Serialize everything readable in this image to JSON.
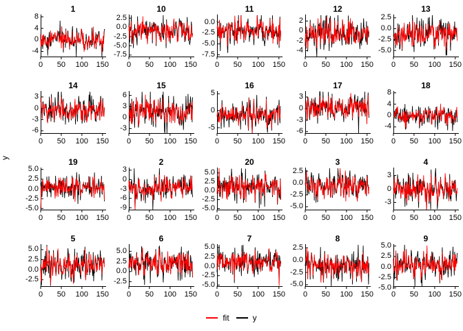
{
  "figure": {
    "y_axis_label": "y",
    "background": "#ffffff",
    "legend": {
      "entries": [
        {
          "label": "fit",
          "color": "#ff0000"
        },
        {
          "label": "y",
          "color": "#000000"
        }
      ]
    }
  },
  "chart_data": {
    "type": "line",
    "layout": "facet-grid-5x4",
    "x_ticks": [
      "0",
      "50",
      "100",
      "150"
    ],
    "x_tick_values": [
      0,
      50,
      100,
      150
    ],
    "x_range": [
      0,
      157
    ],
    "n_points": 155,
    "series": [
      {
        "name": "fit",
        "color": "#ff0000"
      },
      {
        "name": "y",
        "color": "#000000"
      }
    ],
    "facet_titles": [
      "1",
      "10",
      "11",
      "12",
      "13",
      "14",
      "15",
      "16",
      "17",
      "18",
      "19",
      "2",
      "20",
      "3",
      "4",
      "5",
      "6",
      "7",
      "8",
      "9"
    ],
    "panels": [
      {
        "title": "1",
        "y_ticks": [
          "8",
          "4",
          "0",
          "-4"
        ],
        "y_tick_values": [
          8,
          4,
          0,
          -4
        ],
        "ylim": [
          -5.8,
          8.6
        ],
        "mean": 0.0,
        "sd": 2.0
      },
      {
        "title": "10",
        "y_ticks": [
          "2.5",
          "0.0",
          "-2.5",
          "-5.0",
          "-7.5"
        ],
        "y_tick_values": [
          2.5,
          0,
          -2.5,
          -5,
          -7.5
        ],
        "ylim": [
          -7.9,
          3.3
        ],
        "mean": -1.0,
        "sd": 1.9
      },
      {
        "title": "11",
        "y_ticks": [
          "0.0",
          "-2.5",
          "-5.0",
          "-7.5"
        ],
        "y_tick_values": [
          0,
          -2.5,
          -5,
          -7.5
        ],
        "ylim": [
          -7.9,
          1.6
        ],
        "mean": -2.1,
        "sd": 1.6
      },
      {
        "title": "12",
        "y_ticks": [
          "2",
          "0",
          "-2",
          "-4"
        ],
        "y_tick_values": [
          2,
          0,
          -2,
          -4
        ],
        "ylim": [
          -5.2,
          3.2
        ],
        "mean": -0.5,
        "sd": 1.5
      },
      {
        "title": "13",
        "y_ticks": [
          "2.5",
          "0.0",
          "-2.5",
          "-5.0"
        ],
        "y_tick_values": [
          2.5,
          0,
          -2.5,
          -5
        ],
        "ylim": [
          -6.4,
          3.1
        ],
        "mean": -1.4,
        "sd": 1.7
      },
      {
        "title": "14",
        "y_ticks": [
          "3",
          "0",
          "-3",
          "-6"
        ],
        "y_tick_values": [
          3,
          0,
          -3,
          -6
        ],
        "ylim": [
          -6.6,
          4.4
        ],
        "mean": -0.5,
        "sd": 1.9
      },
      {
        "title": "15",
        "y_ticks": [
          "6",
          "3",
          "0",
          "-3"
        ],
        "y_tick_values": [
          6,
          3,
          0,
          -3
        ],
        "ylim": [
          -4.2,
          7.0
        ],
        "mean": 1.4,
        "sd": 2.0
      },
      {
        "title": "16",
        "y_ticks": [
          "5",
          "0",
          "-5"
        ],
        "y_tick_values": [
          5,
          0,
          -5
        ],
        "ylim": [
          -6.6,
          5.6
        ],
        "mean": -1.3,
        "sd": 1.9
      },
      {
        "title": "17",
        "y_ticks": [
          "3",
          "0",
          "-3",
          "-6"
        ],
        "y_tick_values": [
          3,
          0,
          -3,
          -6
        ],
        "ylim": [
          -6.4,
          4.4
        ],
        "mean": 0.3,
        "sd": 1.8
      },
      {
        "title": "18",
        "y_ticks": [
          "8",
          "4",
          "0",
          "-4"
        ],
        "y_tick_values": [
          8,
          4,
          0,
          -4
        ],
        "ylim": [
          -6.2,
          8.4
        ],
        "mean": 0.1,
        "sd": 1.9
      },
      {
        "title": "19",
        "y_ticks": [
          "5.0",
          "2.5",
          "0.0",
          "-2.5",
          "-5.0"
        ],
        "y_tick_values": [
          5,
          2.5,
          0,
          -2.5,
          -5
        ],
        "ylim": [
          -5.3,
          5.3
        ],
        "mean": 0.5,
        "sd": 1.7,
        "start_dip": true
      },
      {
        "title": "2",
        "y_ticks": [
          "3",
          "0",
          "-3",
          "-6",
          "-9"
        ],
        "y_tick_values": [
          3,
          0,
          -3,
          -6,
          -9
        ],
        "ylim": [
          -9.6,
          3.6
        ],
        "mean": -2.8,
        "sd": 2.1
      },
      {
        "title": "20",
        "y_ticks": [
          "5.0",
          "2.5",
          "0.0",
          "-2.5",
          "-5.0"
        ],
        "y_tick_values": [
          5,
          2.5,
          0,
          -2.5,
          -5
        ],
        "ylim": [
          -5.3,
          6.3
        ],
        "mean": 1.3,
        "sd": 1.9
      },
      {
        "title": "3",
        "y_ticks": [
          "2.5",
          "0.0",
          "-2.5",
          "-5.0"
        ],
        "y_tick_values": [
          2.5,
          0,
          -2.5,
          -5
        ],
        "ylim": [
          -5.6,
          3.1
        ],
        "mean": -0.8,
        "sd": 1.5
      },
      {
        "title": "4",
        "y_ticks": [
          "3",
          "0",
          "-3"
        ],
        "y_tick_values": [
          3,
          0,
          -3
        ],
        "ylim": [
          -4.6,
          4.6
        ],
        "mean": 0.0,
        "sd": 1.6
      },
      {
        "title": "5",
        "y_ticks": [
          "5.0",
          "2.5",
          "0.0",
          "-2.5"
        ],
        "y_tick_values": [
          5,
          2.5,
          0,
          -2.5
        ],
        "ylim": [
          -4.1,
          6.2
        ],
        "mean": 1.0,
        "sd": 1.8
      },
      {
        "title": "6",
        "y_ticks": [
          "5.0",
          "2.5",
          "0.0",
          "-2.5"
        ],
        "y_tick_values": [
          5,
          2.5,
          0,
          -2.5
        ],
        "ylim": [
          -3.6,
          6.6
        ],
        "mean": 1.9,
        "sd": 1.7
      },
      {
        "title": "7",
        "y_ticks": [
          "5.0",
          "2.5",
          "0.0",
          "-2.5",
          "-5.0"
        ],
        "y_tick_values": [
          5,
          2.5,
          0,
          -2.5,
          -5
        ],
        "ylim": [
          -5.3,
          5.7
        ],
        "mean": 1.3,
        "sd": 1.9
      },
      {
        "title": "8",
        "y_ticks": [
          "2.5",
          "0.0",
          "-2.5",
          "-5.0"
        ],
        "y_tick_values": [
          2.5,
          0,
          -2.5,
          -5
        ],
        "ylim": [
          -5.3,
          3.1
        ],
        "mean": -1.0,
        "sd": 1.5
      },
      {
        "title": "9",
        "y_ticks": [
          "5.0",
          "2.5",
          "0.0",
          "-2.5",
          "-5.0"
        ],
        "y_tick_values": [
          5,
          2.5,
          0,
          -2.5,
          -5
        ],
        "ylim": [
          -4.6,
          5.3
        ],
        "mean": 0.4,
        "sd": 1.8
      }
    ]
  }
}
